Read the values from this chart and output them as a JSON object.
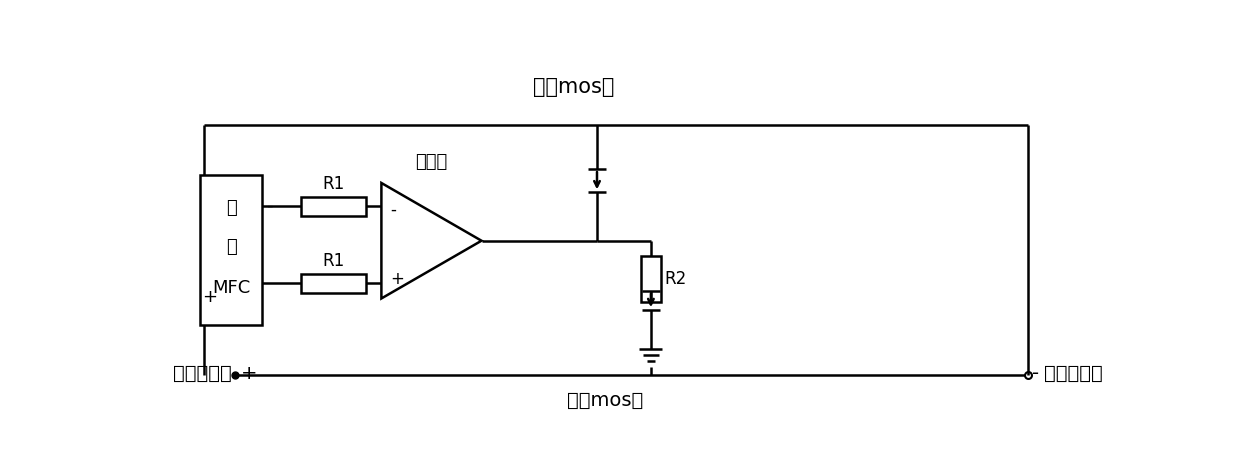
{
  "title_top": "加载mos管",
  "title_bottom": "直通mos管",
  "label_bijiao": "比较器",
  "label_mfc_box": [
    "单",
    "体",
    "MFC"
  ],
  "label_minus": "-",
  "label_plus": "+",
  "label_R1_top": "R1",
  "label_R1_bot": "R1",
  "label_R2": "R2",
  "label_pos_out": "正极输出端",
  "label_neg_out": "负极输出端",
  "label_pos_sign": "+",
  "label_neg_sign": "-",
  "bg_color": "#ffffff",
  "line_color": "#000000"
}
